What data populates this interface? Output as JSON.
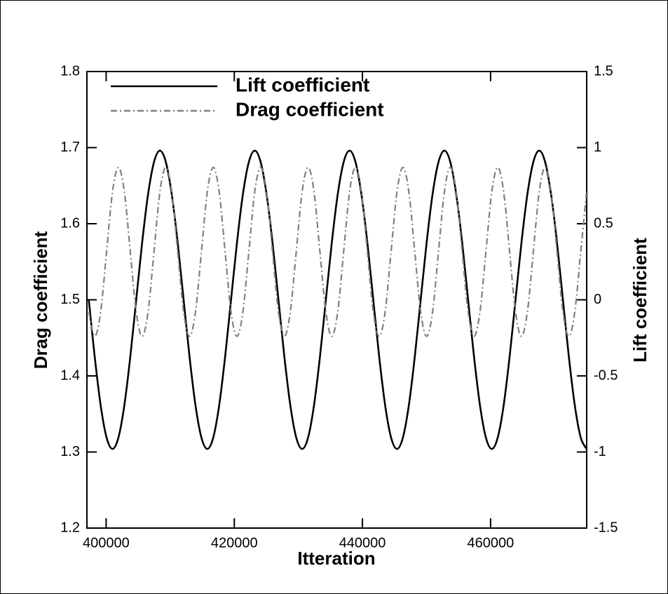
{
  "chart_data": {
    "type": "line",
    "xlabel": "Itteration",
    "ylabel": "Drag coefficient",
    "y2label": "Lift coefficient",
    "x": [
      397293,
      398218,
      399143,
      400068,
      400993,
      401918,
      402843,
      403768,
      404693,
      405618,
      406543,
      407468,
      408393,
      409318,
      410243,
      411168,
      412093,
      413018,
      413943,
      414868,
      415793,
      416718,
      417643,
      418568,
      419493,
      420418,
      421343,
      422268,
      423193,
      424118,
      425043,
      425968,
      426893,
      427818,
      428743,
      429668,
      430593,
      431518,
      432443,
      433368,
      434293,
      435218,
      436143,
      437068,
      437993,
      438918,
      439843,
      440768,
      441693,
      442618,
      443543,
      444468,
      445393,
      446318,
      447243,
      448168,
      449093,
      450018,
      450943,
      451868,
      452793,
      453718,
      454643,
      455568,
      456493,
      457418,
      458343,
      459268,
      460193,
      461118,
      462043,
      462968,
      463893,
      464818,
      465743,
      466668,
      467593,
      468518,
      469443,
      470368,
      471293,
      472218,
      473143,
      474068,
      474993
    ],
    "series": [
      {
        "name": "Lift coefficient",
        "color": "#000000",
        "dash": "solid",
        "axis": "y2",
        "values": [
          0,
          -0.375,
          -0.693,
          -0.905,
          -0.98,
          -0.905,
          -0.693,
          -0.375,
          0,
          0.375,
          0.693,
          0.905,
          0.98,
          0.905,
          0.693,
          0.375,
          0,
          -0.375,
          -0.693,
          -0.905,
          -0.98,
          -0.905,
          -0.693,
          -0.375,
          0,
          0.375,
          0.693,
          0.905,
          0.98,
          0.905,
          0.693,
          0.375,
          0,
          -0.375,
          -0.693,
          -0.905,
          -0.98,
          -0.905,
          -0.693,
          -0.375,
          0,
          0.375,
          0.693,
          0.905,
          0.98,
          0.905,
          0.693,
          0.375,
          0,
          -0.375,
          -0.693,
          -0.905,
          -0.98,
          -0.905,
          -0.693,
          -0.375,
          0,
          0.375,
          0.693,
          0.905,
          0.98,
          0.905,
          0.693,
          0.375,
          0,
          -0.375,
          -0.693,
          -0.905,
          -0.98,
          -0.905,
          -0.693,
          -0.375,
          0,
          0.375,
          0.693,
          0.905,
          0.98,
          0.905,
          0.693,
          0.375,
          0,
          -0.375,
          -0.693,
          -0.905,
          -0.98
        ]
      },
      {
        "name": "Drag coefficient",
        "color": "#808080",
        "dash": "dashdot",
        "axis": "y",
        "values": [
          1.484,
          1.452,
          1.484,
          1.563,
          1.642,
          1.674,
          1.642,
          1.563,
          1.484,
          1.452,
          1.484,
          1.563,
          1.642,
          1.674,
          1.642,
          1.563,
          1.484,
          1.452,
          1.484,
          1.563,
          1.642,
          1.674,
          1.642,
          1.563,
          1.484,
          1.452,
          1.484,
          1.563,
          1.642,
          1.674,
          1.642,
          1.563,
          1.484,
          1.452,
          1.484,
          1.563,
          1.642,
          1.674,
          1.642,
          1.563,
          1.484,
          1.452,
          1.484,
          1.563,
          1.642,
          1.674,
          1.642,
          1.563,
          1.484,
          1.452,
          1.484,
          1.563,
          1.642,
          1.674,
          1.642,
          1.563,
          1.484,
          1.452,
          1.484,
          1.563,
          1.642,
          1.674,
          1.642,
          1.563,
          1.484,
          1.452,
          1.484,
          1.563,
          1.642,
          1.674,
          1.642,
          1.563,
          1.484,
          1.452,
          1.484,
          1.563,
          1.642,
          1.674,
          1.642,
          1.563,
          1.484,
          1.452,
          1.484,
          1.563,
          1.642
        ]
      }
    ],
    "xlim": [
      397000,
      475000
    ],
    "xticks": [
      400000,
      420000,
      440000,
      460000
    ],
    "ylim": [
      1.2,
      1.8
    ],
    "yticks": [
      1.2,
      1.3,
      1.4,
      1.5,
      1.6,
      1.7,
      1.8
    ],
    "y2lim": [
      -1.5,
      1.5
    ],
    "y2ticks": [
      -1.5,
      -1,
      -0.5,
      0,
      0.5,
      1,
      1.5
    ],
    "grid": false,
    "legend": "upper left"
  }
}
